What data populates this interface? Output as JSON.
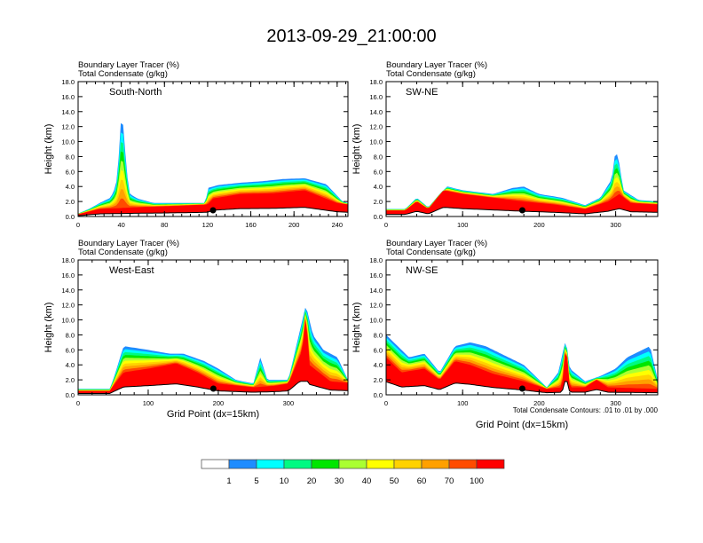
{
  "title": "2013-09-29_21:00:00",
  "colorbar": {
    "colors": [
      "#ffffff",
      "#1e8cff",
      "#00ffff",
      "#00fa82",
      "#00e600",
      "#aaff32",
      "#ffff00",
      "#ffd200",
      "#ffa000",
      "#ff4b00",
      "#ff0000"
    ],
    "labels": [
      "1",
      "5",
      "10",
      "20",
      "30",
      "40",
      "50",
      "60",
      "70",
      "100"
    ]
  },
  "chart_data": [
    {
      "type": "heatmap",
      "panel": "South-North",
      "header_line1": "Boundary Layer Tracer   (%)",
      "header_line2": "Total Condensate   (g/kg)",
      "ylabel": "Height (km)",
      "xlabel": "",
      "xlim": [
        0,
        250
      ],
      "ylim": [
        0,
        18
      ],
      "xticks": [
        "0",
        "40",
        "80",
        "120",
        "160",
        "200",
        "240"
      ],
      "xtick_values": [
        0,
        40,
        80,
        120,
        160,
        200,
        240
      ],
      "yticks": [
        "0.0",
        "2.0",
        "4.0",
        "6.0",
        "8.0",
        "10.0",
        "12.0",
        "14.0",
        "16.0",
        "18.0"
      ],
      "marker_x": 125,
      "tracer_top_km": [
        [
          0,
          0.4
        ],
        [
          10,
          1.0
        ],
        [
          20,
          1.8
        ],
        [
          30,
          2.5
        ],
        [
          35,
          4.0
        ],
        [
          38,
          8.5
        ],
        [
          40,
          13.5
        ],
        [
          42,
          12.0
        ],
        [
          45,
          6.0
        ],
        [
          48,
          3.0
        ],
        [
          55,
          2.4
        ],
        [
          70,
          1.8
        ],
        [
          100,
          1.8
        ],
        [
          118,
          1.8
        ],
        [
          120,
          3.8
        ],
        [
          130,
          4.2
        ],
        [
          150,
          4.5
        ],
        [
          170,
          4.7
        ],
        [
          190,
          5.0
        ],
        [
          210,
          5.1
        ],
        [
          230,
          4.3
        ],
        [
          245,
          2.0
        ],
        [
          250,
          1.8
        ]
      ],
      "red_top_km": [
        [
          0,
          0.3
        ],
        [
          20,
          1.0
        ],
        [
          50,
          1.2
        ],
        [
          90,
          1.4
        ],
        [
          120,
          1.6
        ],
        [
          125,
          2.4
        ],
        [
          150,
          3.0
        ],
        [
          180,
          3.1
        ],
        [
          210,
          3.5
        ],
        [
          240,
          1.8
        ],
        [
          250,
          1.6
        ]
      ]
    },
    {
      "type": "heatmap",
      "panel": "SW-NE",
      "header_line1": "Boundary Layer Tracer   (%)",
      "header_line2": "Total Condensate   (g/kg)",
      "ylabel": "Height (km)",
      "xlabel": "",
      "xlim": [
        0,
        355
      ],
      "ylim": [
        0,
        18
      ],
      "xticks": [
        "0",
        "100",
        "200",
        "300"
      ],
      "xtick_values": [
        0,
        100,
        200,
        300
      ],
      "yticks": [
        "0.0",
        "2.0",
        "4.0",
        "6.0",
        "8.0",
        "10.0",
        "12.0",
        "14.0",
        "16.0",
        "18.0"
      ],
      "marker_x": 178,
      "tracer_top_km": [
        [
          0,
          1.0
        ],
        [
          25,
          1.0
        ],
        [
          40,
          2.5
        ],
        [
          55,
          1.2
        ],
        [
          70,
          3.0
        ],
        [
          80,
          4.0
        ],
        [
          100,
          3.5
        ],
        [
          140,
          3.0
        ],
        [
          165,
          3.8
        ],
        [
          180,
          4.0
        ],
        [
          200,
          3.0
        ],
        [
          230,
          2.5
        ],
        [
          260,
          1.5
        ],
        [
          280,
          2.5
        ],
        [
          295,
          5.0
        ],
        [
          300,
          9.0
        ],
        [
          305,
          7.0
        ],
        [
          310,
          3.5
        ],
        [
          330,
          2.2
        ],
        [
          355,
          2.0
        ]
      ],
      "red_top_km": [
        [
          0,
          0.8
        ],
        [
          25,
          0.8
        ],
        [
          40,
          2.0
        ],
        [
          55,
          1.0
        ],
        [
          75,
          3.5
        ],
        [
          100,
          3.0
        ],
        [
          140,
          2.5
        ],
        [
          180,
          2.0
        ],
        [
          220,
          1.6
        ],
        [
          260,
          1.0
        ],
        [
          290,
          2.0
        ],
        [
          305,
          3.0
        ],
        [
          320,
          1.8
        ],
        [
          355,
          1.6
        ]
      ]
    },
    {
      "type": "heatmap",
      "panel": "West-East",
      "header_line1": "Boundary Layer Tracer   (%)",
      "header_line2": "Total Condensate   (g/kg)",
      "ylabel": "Height (km)",
      "xlabel": "Grid Point (dx=15km)",
      "xlim": [
        0,
        385
      ],
      "ylim": [
        0,
        18
      ],
      "xticks": [
        "0",
        "100",
        "200",
        "300"
      ],
      "xtick_values": [
        0,
        100,
        200,
        300
      ],
      "yticks": [
        "0.0",
        "2.0",
        "4.0",
        "6.0",
        "8.0",
        "10.0",
        "12.0",
        "14.0",
        "16.0",
        "18.0"
      ],
      "marker_x": 193,
      "tracer_top_km": [
        [
          0,
          0.8
        ],
        [
          45,
          0.8
        ],
        [
          50,
          2.0
        ],
        [
          65,
          6.5
        ],
        [
          100,
          6.0
        ],
        [
          130,
          5.5
        ],
        [
          150,
          5.5
        ],
        [
          180,
          4.5
        ],
        [
          200,
          3.5
        ],
        [
          225,
          2.0
        ],
        [
          250,
          1.5
        ],
        [
          260,
          5.0
        ],
        [
          270,
          2.0
        ],
        [
          300,
          2.0
        ],
        [
          315,
          8.0
        ],
        [
          325,
          12.0
        ],
        [
          335,
          8.0
        ],
        [
          350,
          6.0
        ],
        [
          370,
          5.0
        ],
        [
          385,
          2.0
        ]
      ],
      "red_top_km": [
        [
          0,
          0.5
        ],
        [
          45,
          0.5
        ],
        [
          55,
          1.8
        ],
        [
          65,
          3.0
        ],
        [
          100,
          3.5
        ],
        [
          140,
          4.2
        ],
        [
          170,
          3.0
        ],
        [
          200,
          1.5
        ],
        [
          250,
          1.0
        ],
        [
          280,
          1.2
        ],
        [
          300,
          1.5
        ],
        [
          320,
          6.0
        ],
        [
          325,
          11.0
        ],
        [
          330,
          4.0
        ],
        [
          360,
          1.8
        ],
        [
          385,
          1.6
        ]
      ]
    },
    {
      "type": "heatmap",
      "panel": "NW-SE",
      "header_line1": "Boundary Layer Tracer   (%)",
      "header_line2": "Total Condensate   (g/kg)",
      "ylabel": "Height (km)",
      "xlabel": "Grid Point (dx=15km)",
      "xlim": [
        0,
        355
      ],
      "ylim": [
        0,
        18
      ],
      "xticks": [
        "0",
        "100",
        "200",
        "300"
      ],
      "xtick_values": [
        0,
        100,
        200,
        300
      ],
      "yticks": [
        "0.0",
        "2.0",
        "4.0",
        "6.0",
        "8.0",
        "10.0",
        "12.0",
        "14.0",
        "16.0",
        "18.0"
      ],
      "marker_x": 178,
      "contour_note": "Total Condensate Contours: .01 to .01 by .000",
      "tracer_top_km": [
        [
          0,
          8.0
        ],
        [
          15,
          6.5
        ],
        [
          30,
          5.0
        ],
        [
          50,
          5.5
        ],
        [
          70,
          3.0
        ],
        [
          90,
          6.5
        ],
        [
          110,
          7.0
        ],
        [
          130,
          6.5
        ],
        [
          160,
          5.0
        ],
        [
          180,
          4.0
        ],
        [
          195,
          2.5
        ],
        [
          210,
          1.0
        ],
        [
          225,
          3.0
        ],
        [
          235,
          7.5
        ],
        [
          240,
          3.5
        ],
        [
          260,
          1.8
        ],
        [
          280,
          2.5
        ],
        [
          300,
          3.5
        ],
        [
          315,
          5.0
        ],
        [
          345,
          6.5
        ],
        [
          355,
          2.0
        ]
      ],
      "red_top_km": [
        [
          0,
          5.0
        ],
        [
          20,
          3.0
        ],
        [
          50,
          3.5
        ],
        [
          70,
          2.0
        ],
        [
          90,
          4.5
        ],
        [
          110,
          4.0
        ],
        [
          140,
          2.8
        ],
        [
          180,
          1.8
        ],
        [
          210,
          0.8
        ],
        [
          230,
          1.0
        ],
        [
          235,
          7.0
        ],
        [
          240,
          1.0
        ],
        [
          260,
          1.0
        ],
        [
          275,
          2.0
        ],
        [
          290,
          1.0
        ],
        [
          355,
          0.8
        ]
      ]
    }
  ]
}
